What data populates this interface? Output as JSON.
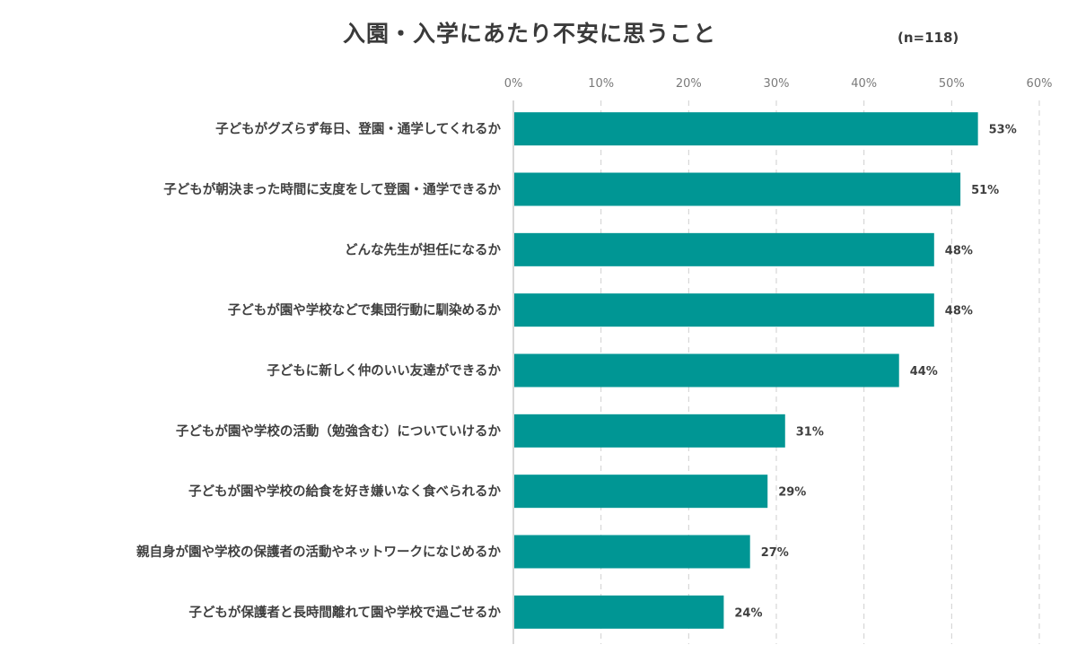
{
  "chart_data": {
    "type": "bar",
    "orientation": "horizontal",
    "title": "入園・入学にあたり不安に思うこと",
    "subtitle": "(n=118)",
    "x_ticks": [
      "0%",
      "10%",
      "20%",
      "30%",
      "40%",
      "50%",
      "60%"
    ],
    "xlim": [
      0,
      60
    ],
    "grid": "vertical dashed",
    "bar_color": "#009694",
    "categories": [
      "子どもがグズらず毎日、登園・通学してくれるか",
      "子どもが朝決まった時間に支度をして登園・通学できるか",
      "どんな先生が担任になるか",
      "子どもが園や学校などで集団行動に馴染めるか",
      "子どもに新しく仲のいい友達ができるか",
      "子どもが園や学校の活動（勉強含む）についていけるか",
      "子どもが園や学校の給食を好き嫌いなく食べられるか",
      "親自身が園や学校の保護者の活動やネットワークになじめるか",
      "子どもが保護者と長時間離れて園や学校で過ごせるか"
    ],
    "values": [
      53,
      51,
      48,
      48,
      44,
      31,
      29,
      27,
      24
    ],
    "value_labels": [
      "53%",
      "51%",
      "48%",
      "48%",
      "44%",
      "31%",
      "29%",
      "27%",
      "24%"
    ]
  }
}
